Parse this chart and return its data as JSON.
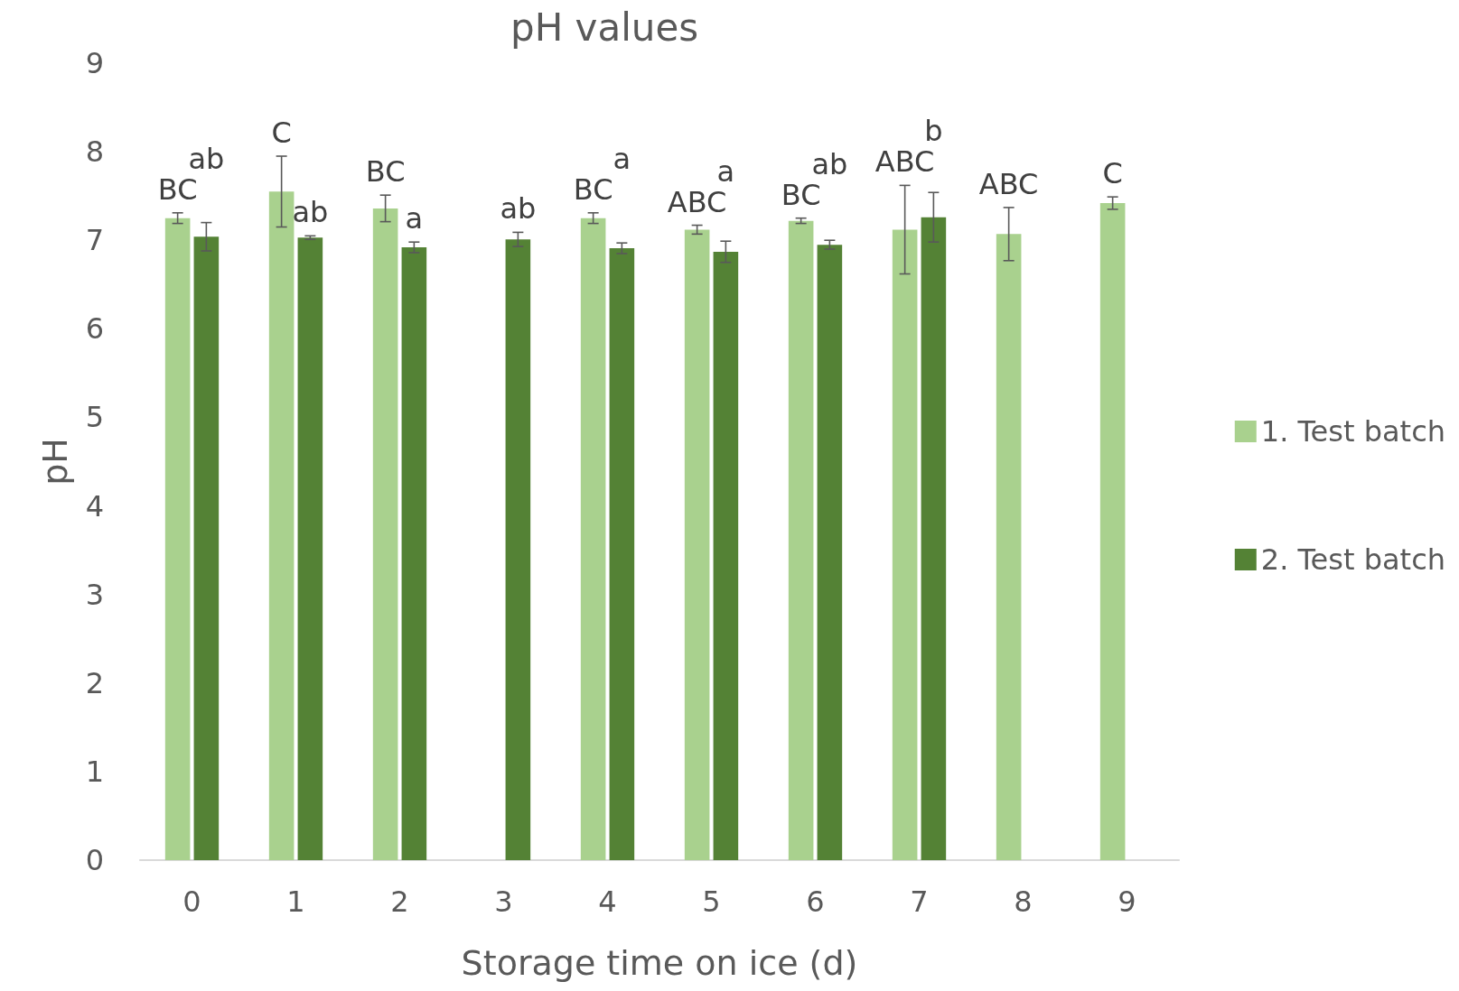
{
  "chart_data": {
    "type": "bar",
    "title": "pH values",
    "xlabel": "Storage time on ice (d)",
    "ylabel": "pH",
    "categories": [
      "0",
      "1",
      "2",
      "3",
      "4",
      "5",
      "6",
      "7",
      "8",
      "9"
    ],
    "series": [
      {
        "name": "1. Test batch",
        "color": "#a9d18e",
        "values": [
          7.25,
          7.55,
          7.36,
          null,
          7.25,
          7.12,
          7.22,
          7.12,
          7.07,
          7.42
        ],
        "errors": [
          0.06,
          0.4,
          0.15,
          null,
          0.06,
          0.05,
          0.03,
          0.5,
          0.3,
          0.07
        ]
      },
      {
        "name": "2. Test batch",
        "color": "#548235",
        "values": [
          7.04,
          7.03,
          6.92,
          7.01,
          6.91,
          6.87,
          6.95,
          7.26,
          null,
          null
        ],
        "errors": [
          0.16,
          0.02,
          0.06,
          0.08,
          0.06,
          0.12,
          0.05,
          0.28,
          null,
          null
        ]
      }
    ],
    "annotations": [
      {
        "text": "BC",
        "x": "0",
        "y": 7.25
      },
      {
        "text": "ab",
        "x": "0",
        "y": 7.04
      },
      {
        "text": "C",
        "x": "1",
        "y": 7.55
      },
      {
        "text": "ab",
        "x": "1",
        "y": 7.03
      },
      {
        "text": "BC",
        "x": "2",
        "y": 7.36
      },
      {
        "text": "a",
        "x": "2",
        "y": 6.92
      },
      {
        "text": "ab",
        "x": "3",
        "y": 7.01
      },
      {
        "text": "BC",
        "x": "4",
        "y": 7.25
      },
      {
        "text": "a",
        "x": "4",
        "y": 6.91
      },
      {
        "text": "ABC",
        "x": "5",
        "y": 7.12
      },
      {
        "text": "a",
        "x": "5",
        "y": 6.87
      },
      {
        "text": "BC",
        "x": "6",
        "y": 7.22
      },
      {
        "text": "ab",
        "x": "6",
        "y": 6.95
      },
      {
        "text": "ABC",
        "x": "7",
        "y": 7.12
      },
      {
        "text": "b",
        "x": "7",
        "y": 7.26
      },
      {
        "text": "ABC",
        "x": "8",
        "y": 7.07
      },
      {
        "text": "C",
        "x": "9",
        "y": 7.42
      }
    ],
    "ylim": [
      0,
      9
    ],
    "yticks": [
      0,
      1,
      2,
      3,
      4,
      5,
      6,
      7,
      8,
      9
    ],
    "grid": false,
    "legend": "right"
  }
}
